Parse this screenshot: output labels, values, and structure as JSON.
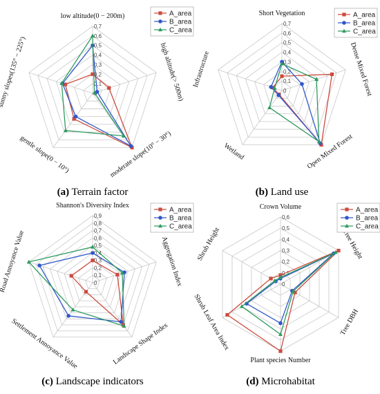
{
  "colors": {
    "A_area": "#cc4b3e",
    "B_area": "#3057c9",
    "C_area": "#2e9a60"
  },
  "chart_data": [
    {
      "type": "radar",
      "caption_letter": "(a)",
      "caption_text": " Terrain factor",
      "max": 0.7,
      "ticks": [
        "0",
        "0,1",
        "0,2",
        "0,3",
        "0,4",
        "0,5",
        "0,6",
        "0,7"
      ],
      "axes": [
        "low altitude(0 − 200m)",
        "high altitude(> 500m)",
        "moderate slope(10° − 30°)",
        "gentle slope(0 − 10°)",
        "sunny slopes(135° − 225°)"
      ],
      "series": [
        {
          "name": "A_area",
          "values": [
            0.2,
            0.18,
            0.7,
            0.33,
            0.3
          ],
          "marker": "square"
        },
        {
          "name": "B_area",
          "values": [
            0.5,
            0.05,
            0.68,
            0.3,
            0.33
          ],
          "marker": "circle"
        },
        {
          "name": "C_area",
          "values": [
            0.6,
            0.02,
            0.55,
            0.48,
            0.34
          ],
          "marker": "triangle"
        }
      ]
    },
    {
      "type": "radar",
      "caption_letter": "(b)",
      "caption_text": " Land use",
      "max": 0.7,
      "ticks": [
        "0",
        "0,1",
        "0,2",
        "0,3",
        "0,4",
        "0,5",
        "0,6",
        "0,7"
      ],
      "axes": [
        "Short Vegetation",
        "Dense Mixed Forest",
        "Open Mixed Forest",
        "Wetland",
        "Infrastructure"
      ],
      "series": [
        {
          "name": "A_area",
          "values": [
            0.15,
            0.55,
            0.7,
            0.05,
            0.1
          ],
          "marker": "square"
        },
        {
          "name": "B_area",
          "values": [
            0.3,
            0.22,
            0.68,
            0.06,
            0.12
          ],
          "marker": "circle"
        },
        {
          "name": "C_area",
          "values": [
            0.28,
            0.38,
            0.66,
            0.22,
            0.08
          ],
          "marker": "triangle"
        }
      ]
    },
    {
      "type": "radar",
      "caption_letter": "(c)",
      "caption_text": " Landscape indicators",
      "max": 0.9,
      "ticks": [
        "0",
        "0,1",
        "0,2",
        "0,3",
        "0,4",
        "0,5",
        "0,6",
        "0,7",
        "0,8",
        "0,9"
      ],
      "axes": [
        "Shannon's Diversity Index",
        "Aggregation Index",
        "Landscape Shape Index",
        "Settlement Annoyance Value",
        "Road Annoyance Value"
      ],
      "series": [
        {
          "name": "A_area",
          "values": [
            0.3,
            0.35,
            0.7,
            0.15,
            0.3
          ],
          "marker": "square"
        },
        {
          "name": "B_area",
          "values": [
            0.4,
            0.45,
            0.65,
            0.55,
            0.75
          ],
          "marker": "circle"
        },
        {
          "name": "C_area",
          "values": [
            0.48,
            0.42,
            0.72,
            0.45,
            0.9
          ],
          "marker": "triangle"
        }
      ]
    },
    {
      "type": "radar",
      "caption_letter": "(d)",
      "caption_text": " Microhabitat",
      "max": 0.6,
      "ticks": [
        "0",
        "0,1",
        "0,2",
        "0,3",
        "0,4",
        "0,5",
        "0,6"
      ],
      "axes": [
        "Crown Volume",
        "Tree Height",
        "Tree DBH",
        "Plant species Number",
        "Shrub Leaf Area Index",
        "Shrub Height"
      ],
      "series": [
        {
          "name": "A_area",
          "values": [
            0.08,
            0.6,
            0.15,
            0.6,
            0.55,
            0.1
          ],
          "marker": "square"
        },
        {
          "name": "B_area",
          "values": [
            0.05,
            0.55,
            0.12,
            0.35,
            0.35,
            0.05
          ],
          "marker": "circle"
        },
        {
          "name": "C_area",
          "values": [
            0.06,
            0.57,
            0.13,
            0.45,
            0.4,
            0.06
          ],
          "marker": "triangle"
        }
      ]
    }
  ]
}
